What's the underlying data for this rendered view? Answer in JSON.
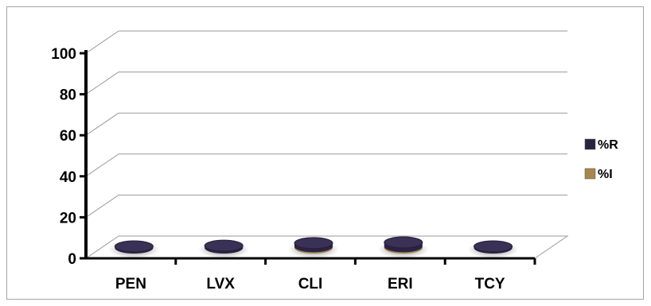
{
  "chart_data": {
    "type": "bar",
    "title": "",
    "xlabel": "",
    "ylabel": "",
    "ylim": [
      0,
      100
    ],
    "yticks": [
      "0",
      "20",
      "40",
      "60",
      "80",
      "100"
    ],
    "categories": [
      "PEN",
      "LVX",
      "CLI",
      "ERI",
      "TCY"
    ],
    "series": [
      {
        "name": "%R",
        "color": "#2b2342",
        "values": [
          0,
          1,
          3,
          4,
          0
        ]
      },
      {
        "name": "%I",
        "color": "#a8874f",
        "values": [
          0,
          0,
          2,
          2,
          0
        ]
      }
    ],
    "grid": true,
    "legend": "right",
    "style": "3d"
  }
}
